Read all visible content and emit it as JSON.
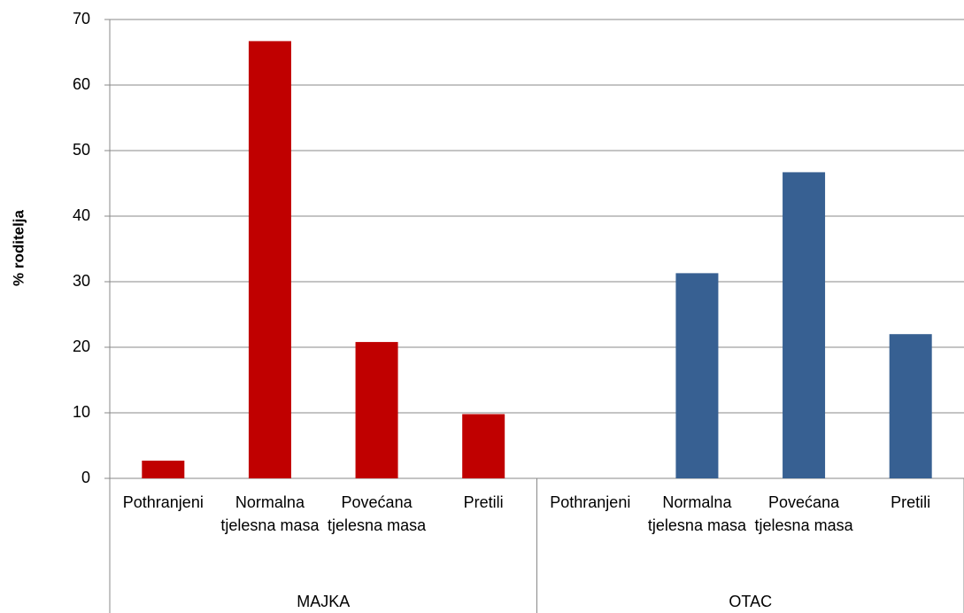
{
  "chart_data": {
    "type": "bar",
    "y_label": "% roditelja",
    "ylim": [
      0,
      70
    ],
    "yticks": [
      0,
      10,
      20,
      30,
      40,
      50,
      60,
      70
    ],
    "grid": true,
    "series": [
      {
        "name": "MAJKA",
        "color": "#c00000",
        "categories": [
          "Pothranjeni",
          "Normalna tjelesna masa",
          "Povećana tjelesna masa",
          "Pretili"
        ],
        "values": [
          2.7,
          66.7,
          20.8,
          9.8
        ]
      },
      {
        "name": "OTAC",
        "color": "#376092",
        "categories": [
          "Pothranjeni",
          "Normalna tjelesna masa",
          "Povećana tjelesna masa",
          "Pretili"
        ],
        "values": [
          0,
          31.3,
          46.7,
          22.0
        ]
      }
    ]
  }
}
